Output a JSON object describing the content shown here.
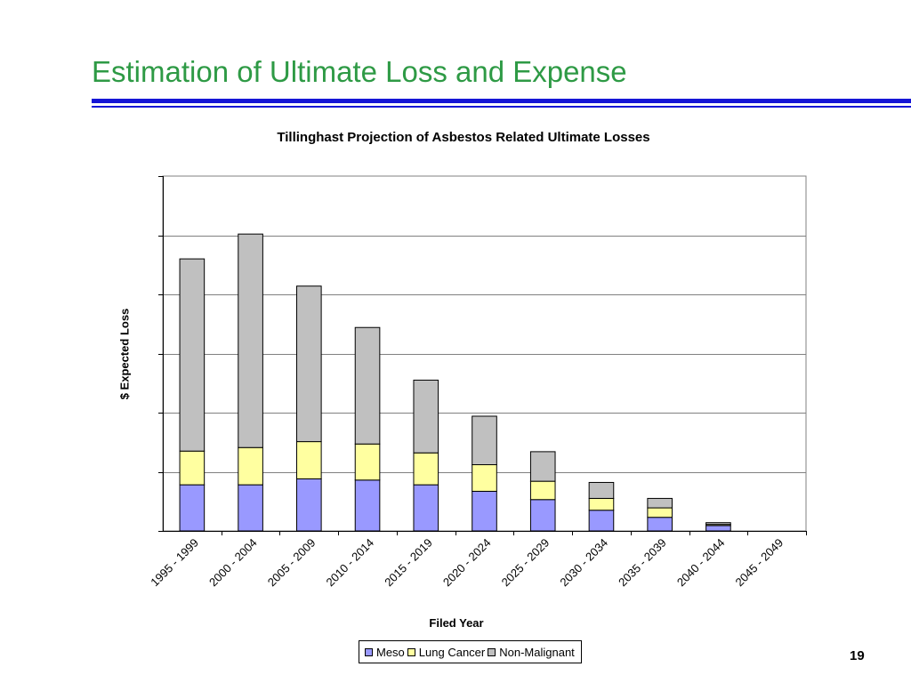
{
  "slide": {
    "title": "Estimation of Ultimate Loss and Expense",
    "page_number": "19"
  },
  "colors": {
    "title": "#2e9a45",
    "rule": "#1515d6",
    "meso": "#9999ff",
    "lung_cancer": "#ffffa0",
    "non_malignant": "#c0c0c0"
  },
  "chart_data": {
    "type": "bar",
    "stacked": true,
    "title": "Tillinghast Projection of Asbestos Related Ultimate Losses",
    "xlabel": "Filed Year",
    "ylabel": "$ Expected Loss",
    "ylim": [
      0,
      6
    ],
    "y_ticks_labeled": false,
    "grid": true,
    "legend": "bottom",
    "categories": [
      "1995 - 1999",
      "2000 - 2004",
      "2005 - 2009",
      "2010 - 2014",
      "2015 - 2019",
      "2020 - 2024",
      "2025 - 2029",
      "2030 - 2034",
      "2035 - 2039",
      "2040 - 2044",
      "2045 - 2049"
    ],
    "series": [
      {
        "name": "Meso",
        "color": "#9999ff",
        "values": [
          0.78,
          0.78,
          0.88,
          0.86,
          0.78,
          0.67,
          0.53,
          0.35,
          0.23,
          0.09,
          0.0
        ]
      },
      {
        "name": "Lung Cancer",
        "color": "#ffffa0",
        "values": [
          0.57,
          0.63,
          0.63,
          0.61,
          0.54,
          0.45,
          0.31,
          0.2,
          0.16,
          0.02,
          0.0
        ]
      },
      {
        "name": "Non-Malignant",
        "color": "#c0c0c0",
        "values": [
          3.25,
          3.61,
          2.63,
          1.97,
          1.23,
          0.82,
          0.5,
          0.27,
          0.16,
          0.03,
          0.0
        ]
      }
    ]
  }
}
